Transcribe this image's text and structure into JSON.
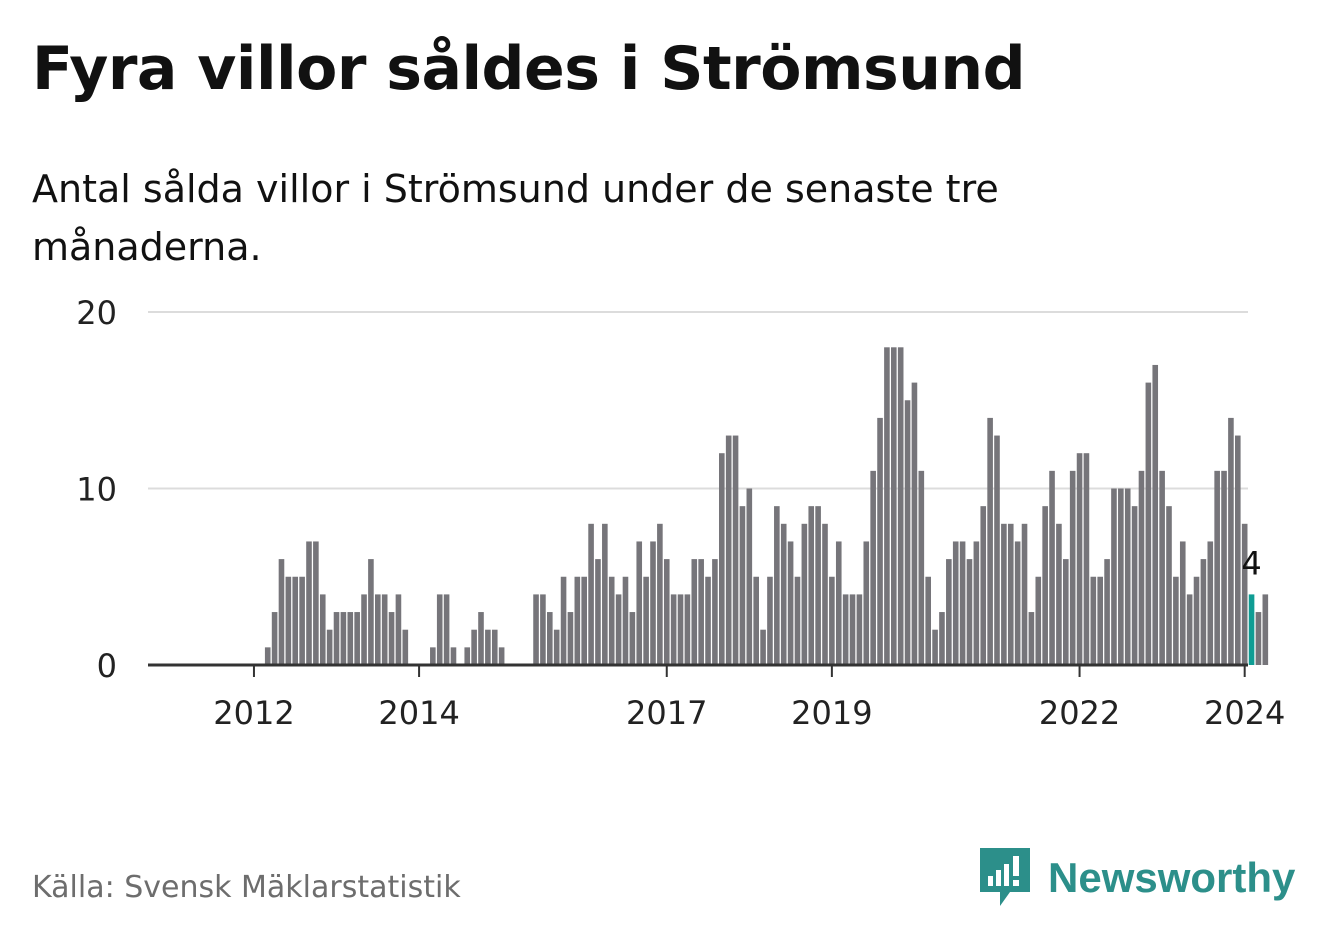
{
  "header": {
    "title": "Fyra villor såldes i Strömsund",
    "subtitle": "Antal sålda villor i Strömsund under de senaste tre månaderna."
  },
  "footer": {
    "source": "Källa: Svensk Mäklarstatistik",
    "brand": "Newsworthy",
    "brand_icon": "newsworthy-logo-icon"
  },
  "colors": {
    "bar": "#76757a",
    "highlight": "#0f9d94",
    "grid": "#dcdcdc",
    "axis": "#333333",
    "brand": "#2c8f8a"
  },
  "chart_data": {
    "type": "bar",
    "title": "Fyra villor såldes i Strömsund",
    "xlabel": "",
    "ylabel": "",
    "ylim": [
      0,
      20
    ],
    "yticks": [
      0,
      10,
      20
    ],
    "grid": true,
    "start_year": 2011,
    "start_month": 6,
    "xtick_labels": [
      {
        "label": "2012",
        "index": 7
      },
      {
        "label": "2014",
        "index": 31
      },
      {
        "label": "2017",
        "index": 67
      },
      {
        "label": "2019",
        "index": 91
      },
      {
        "label": "2022",
        "index": 127
      },
      {
        "label": "2024",
        "index": 151
      }
    ],
    "highlight_index": 152,
    "highlight_label": "4",
    "values": [
      0,
      0,
      0,
      0,
      0,
      0,
      0,
      0,
      0,
      1,
      3,
      6,
      5,
      5,
      5,
      7,
      7,
      4,
      2,
      3,
      3,
      3,
      3,
      4,
      6,
      4,
      4,
      3,
      4,
      2,
      0,
      0,
      0,
      1,
      4,
      4,
      1,
      0,
      1,
      2,
      3,
      2,
      2,
      1,
      0,
      0,
      0,
      0,
      4,
      4,
      3,
      2,
      5,
      3,
      5,
      5,
      8,
      6,
      8,
      5,
      4,
      5,
      3,
      7,
      5,
      7,
      8,
      6,
      4,
      4,
      4,
      6,
      6,
      5,
      6,
      12,
      13,
      13,
      9,
      10,
      5,
      2,
      5,
      9,
      8,
      7,
      5,
      8,
      9,
      9,
      8,
      5,
      7,
      4,
      4,
      4,
      7,
      11,
      14,
      18,
      18,
      18,
      15,
      16,
      11,
      5,
      2,
      3,
      6,
      7,
      7,
      6,
      7,
      9,
      14,
      13,
      8,
      8,
      7,
      8,
      3,
      5,
      9,
      11,
      8,
      6,
      11,
      12,
      12,
      5,
      5,
      6,
      10,
      10,
      10,
      9,
      11,
      16,
      17,
      11,
      9,
      5,
      7,
      4,
      5,
      6,
      7,
      11,
      11,
      14,
      13,
      8,
      4,
      3,
      4
    ]
  }
}
